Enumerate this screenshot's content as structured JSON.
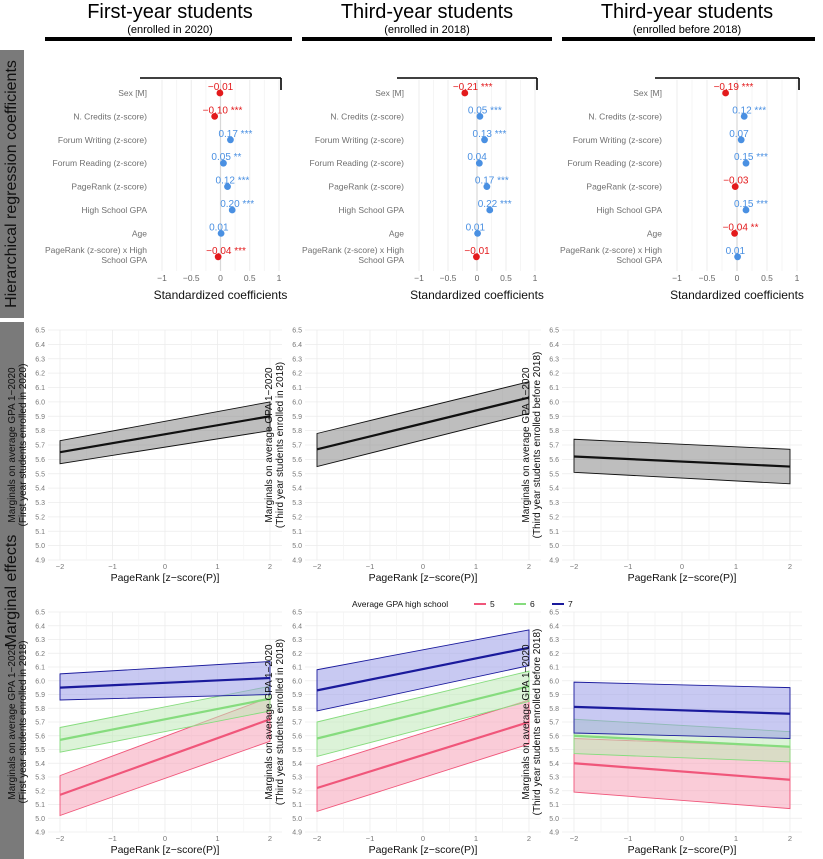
{
  "side_labels": {
    "top": "Hierarchical regression coefficients",
    "bottom": "Marginal effects"
  },
  "columns": [
    {
      "title": "First-year students",
      "subtitle": "(enrolled in 2020)"
    },
    {
      "title": "Third-year students",
      "subtitle": "(enrolled in 2018)"
    },
    {
      "title": "Third-year students",
      "subtitle": "(enrolled before 2018)"
    }
  ],
  "colors": {
    "positive": "#4a90e2",
    "negative": "#e31a1c",
    "grid": "#ececec",
    "gpa5": "#f0567a",
    "gpa6": "#86dc7e",
    "gpa7": "#1a1a9c",
    "overall": "#111111"
  },
  "chart_data": [
    {
      "type": "forest",
      "panel": "coefficients-first-year",
      "xlabel": "Standardized coefficients",
      "xlim": [
        -1,
        1
      ],
      "xticks": [
        "−1",
        "−0.5",
        "0",
        "0.5",
        "1"
      ],
      "predictors": [
        "Sex [M]",
        "N. Credits (z-score)",
        "Forum Writing (z-score)",
        "Forum Reading (z-score)",
        "PageRank (z-score)",
        "High School GPA",
        "Age",
        "PageRank (z-score) x High School GPA"
      ],
      "values": [
        -0.01,
        -0.1,
        0.17,
        0.05,
        0.12,
        0.2,
        0.01,
        -0.04
      ],
      "labels": [
        "−0.01",
        "−0.10 ***",
        "0.17 ***",
        "0.05 **",
        "0.12 ***",
        "0.20 ***",
        "0.01",
        "−0.04 ***"
      ]
    },
    {
      "type": "forest",
      "panel": "coefficients-third-year-2018",
      "xlabel": "Standardized coefficients",
      "xlim": [
        -1,
        1
      ],
      "xticks": [
        "−1",
        "−0.5",
        "0",
        "0.5",
        "1"
      ],
      "predictors": [
        "Sex [M]",
        "N. Credits (z-score)",
        "Forum Writing (z-score)",
        "Forum Reading (z-score)",
        "PageRank (z-score)",
        "High School GPA",
        "Age",
        "PageRank (z-score) x High School GPA"
      ],
      "values": [
        -0.21,
        0.05,
        0.13,
        0.04,
        0.17,
        0.22,
        0.01,
        -0.01
      ],
      "labels": [
        "−0.21 ***",
        "0.05 ***",
        "0.13 ***",
        "0.04",
        "0.17 ***",
        "0.22 ***",
        "0.01",
        "−0.01"
      ]
    },
    {
      "type": "forest",
      "panel": "coefficients-third-year-before-2018",
      "xlabel": "Standardized coefficients",
      "xlim": [
        -1,
        1
      ],
      "xticks": [
        "−1",
        "−0.5",
        "0",
        "0.5",
        "1"
      ],
      "predictors": [
        "Sex [M]",
        "N. Credits (z-score)",
        "Forum Writing (z-score)",
        "Forum Reading (z-score)",
        "PageRank (z-score)",
        "High School GPA",
        "Age",
        "PageRank (z-score) x High School GPA"
      ],
      "values": [
        -0.19,
        0.12,
        0.07,
        0.15,
        -0.03,
        0.15,
        -0.04,
        0.01
      ],
      "labels": [
        "−0.19 ***",
        "0.12 ***",
        "0.07",
        "0.15 ***",
        "−0.03",
        "0.15 ***",
        "−0.04 **",
        "0.01"
      ]
    },
    {
      "type": "line",
      "panel": "marginal-first-year",
      "xlabel": "PageRank [z−score(P)]",
      "ylabel": [
        "Marginals on average GPA 1−2020",
        "(First year students enrolled in 2020)"
      ],
      "xlim": [
        -2,
        2
      ],
      "ylim": [
        4.9,
        6.5
      ],
      "xticks": [
        "−2",
        "−1",
        "0",
        "1",
        "2"
      ],
      "yticks": [
        "4.9",
        "5.0",
        "5.1",
        "5.2",
        "5.3",
        "5.4",
        "5.5",
        "5.6",
        "5.7",
        "5.8",
        "5.9",
        "6.0",
        "6.1",
        "6.2",
        "6.3",
        "6.4",
        "6.5"
      ],
      "series": [
        {
          "name": "overall",
          "color": "#111111",
          "fill": "#888888",
          "x": [
            -2,
            2
          ],
          "y": [
            5.65,
            5.9
          ],
          "lower": [
            5.57,
            5.8
          ],
          "upper": [
            5.73,
            6.0
          ]
        }
      ]
    },
    {
      "type": "line",
      "panel": "marginal-third-year-2018",
      "xlabel": "PageRank [z−score(P)]",
      "ylabel": [
        "Marginals on average GPA 1−2020",
        "(Third year students enrolled in 2018)"
      ],
      "xlim": [
        -2,
        2
      ],
      "ylim": [
        4.9,
        6.5
      ],
      "xticks": [
        "−2",
        "−1",
        "0",
        "1",
        "2"
      ],
      "yticks": [
        "4.9",
        "5.0",
        "5.1",
        "5.2",
        "5.3",
        "5.4",
        "5.5",
        "5.6",
        "5.7",
        "5.8",
        "5.9",
        "6.0",
        "6.1",
        "6.2",
        "6.3",
        "6.4",
        "6.5"
      ],
      "series": [
        {
          "name": "overall",
          "color": "#111111",
          "fill": "#888888",
          "x": [
            -2,
            2
          ],
          "y": [
            5.67,
            6.03
          ],
          "lower": [
            5.55,
            5.92
          ],
          "upper": [
            5.78,
            6.14
          ]
        }
      ]
    },
    {
      "type": "line",
      "panel": "marginal-third-year-before-2018",
      "xlabel": "PageRank [z−score(P)]",
      "ylabel": [
        "Marginals on average GPA 1−2020",
        "(Third year students enrolled before 2018)"
      ],
      "xlim": [
        -2,
        2
      ],
      "ylim": [
        4.9,
        6.5
      ],
      "xticks": [
        "−2",
        "−1",
        "0",
        "1",
        "2"
      ],
      "yticks": [
        "4.9",
        "5.0",
        "5.1",
        "5.2",
        "5.3",
        "5.4",
        "5.5",
        "5.6",
        "5.7",
        "5.8",
        "5.9",
        "6.0",
        "6.1",
        "6.2",
        "6.3",
        "6.4",
        "6.5"
      ],
      "series": [
        {
          "name": "overall",
          "color": "#111111",
          "fill": "#888888",
          "x": [
            -2,
            2
          ],
          "y": [
            5.62,
            5.55
          ],
          "lower": [
            5.51,
            5.43
          ],
          "upper": [
            5.74,
            5.67
          ]
        }
      ]
    },
    {
      "type": "line",
      "panel": "interaction-first-year",
      "xlabel": "PageRank [z−score(P)]",
      "ylabel": [
        "Marginals on average GPA 1−2020",
        "(First year students enrolled in 2018)"
      ],
      "xlim": [
        -2,
        2
      ],
      "ylim": [
        4.9,
        6.5
      ],
      "xticks": [
        "−2",
        "−1",
        "0",
        "1",
        "2"
      ],
      "yticks": [
        "4.9",
        "5.0",
        "5.1",
        "5.2",
        "5.3",
        "5.4",
        "5.5",
        "5.6",
        "5.7",
        "5.8",
        "5.9",
        "6.0",
        "6.1",
        "6.2",
        "6.3",
        "6.4",
        "6.5"
      ],
      "series": [
        {
          "name": "5",
          "color": "#f0567a",
          "fill": "#f5a3b8",
          "x": [
            -2,
            2
          ],
          "y": [
            5.17,
            5.72
          ],
          "lower": [
            5.02,
            5.56
          ],
          "upper": [
            5.31,
            5.88
          ]
        },
        {
          "name": "6",
          "color": "#86dc7e",
          "fill": "#bfe9b8",
          "x": [
            -2,
            2
          ],
          "y": [
            5.57,
            5.87
          ],
          "lower": [
            5.48,
            5.78
          ],
          "upper": [
            5.66,
            5.96
          ]
        },
        {
          "name": "7",
          "color": "#1a1a9c",
          "fill": "#9a9ce8",
          "x": [
            -2,
            2
          ],
          "y": [
            5.95,
            6.02
          ],
          "lower": [
            5.86,
            5.9
          ],
          "upper": [
            6.05,
            6.14
          ]
        }
      ]
    },
    {
      "type": "line",
      "panel": "interaction-third-year-2018",
      "xlabel": "PageRank [z−score(P)]",
      "ylabel": [
        "Marginals on average GPA 1−2020",
        "(Third year students enrolled in 2018)"
      ],
      "xlim": [
        -2,
        2
      ],
      "ylim": [
        4.9,
        6.5
      ],
      "xticks": [
        "−2",
        "−1",
        "0",
        "1",
        "2"
      ],
      "yticks": [
        "4.9",
        "5.0",
        "5.1",
        "5.2",
        "5.3",
        "5.4",
        "5.5",
        "5.6",
        "5.7",
        "5.8",
        "5.9",
        "6.0",
        "6.1",
        "6.2",
        "6.3",
        "6.4",
        "6.5"
      ],
      "legend": {
        "title": "Average GPA high school",
        "items": [
          "5",
          "6",
          "7"
        ]
      },
      "series": [
        {
          "name": "5",
          "color": "#f0567a",
          "fill": "#f5a3b8",
          "x": [
            -2,
            2
          ],
          "y": [
            5.22,
            5.7
          ],
          "lower": [
            5.05,
            5.54
          ],
          "upper": [
            5.38,
            5.86
          ]
        },
        {
          "name": "6",
          "color": "#86dc7e",
          "fill": "#bfe9b8",
          "x": [
            -2,
            2
          ],
          "y": [
            5.58,
            5.96
          ],
          "lower": [
            5.45,
            5.85
          ],
          "upper": [
            5.7,
            6.07
          ]
        },
        {
          "name": "7",
          "color": "#1a1a9c",
          "fill": "#9a9ce8",
          "x": [
            -2,
            2
          ],
          "y": [
            5.93,
            6.24
          ],
          "lower": [
            5.78,
            6.11
          ],
          "upper": [
            6.08,
            6.37
          ]
        }
      ]
    },
    {
      "type": "line",
      "panel": "interaction-third-year-before-2018",
      "xlabel": "PageRank [z−score(P)]",
      "ylabel": [
        "Marginals on average GPA 1−2020",
        "(Third year students enrolled before 2018)"
      ],
      "xlim": [
        -2,
        2
      ],
      "ylim": [
        4.9,
        6.5
      ],
      "xticks": [
        "−2",
        "−1",
        "0",
        "1",
        "2"
      ],
      "yticks": [
        "4.9",
        "5.0",
        "5.1",
        "5.2",
        "5.3",
        "5.4",
        "5.5",
        "5.6",
        "5.7",
        "5.8",
        "5.9",
        "6.0",
        "6.1",
        "6.2",
        "6.3",
        "6.4",
        "6.5"
      ],
      "series": [
        {
          "name": "5",
          "color": "#f0567a",
          "fill": "#f5a3b8",
          "x": [
            -2,
            2
          ],
          "y": [
            5.4,
            5.28
          ],
          "lower": [
            5.19,
            5.07
          ],
          "upper": [
            5.58,
            5.52
          ]
        },
        {
          "name": "6",
          "color": "#86dc7e",
          "fill": "#bfe9b8",
          "x": [
            -2,
            2
          ],
          "y": [
            5.6,
            5.52
          ],
          "lower": [
            5.47,
            5.41
          ],
          "upper": [
            5.72,
            5.63
          ]
        },
        {
          "name": "7",
          "color": "#1a1a9c",
          "fill": "#9a9ce8",
          "x": [
            -2,
            2
          ],
          "y": [
            5.81,
            5.76
          ],
          "lower": [
            5.62,
            5.58
          ],
          "upper": [
            5.99,
            5.95
          ]
        }
      ]
    }
  ]
}
